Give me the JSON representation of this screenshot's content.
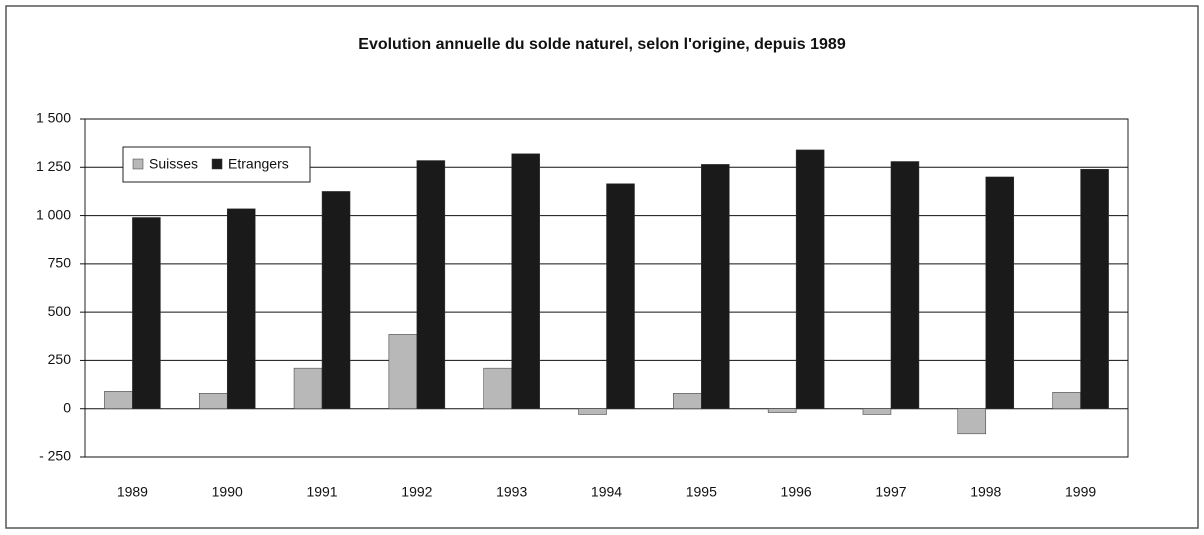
{
  "chart_data": {
    "type": "bar",
    "title": "Evolution annuelle du solde naturel, selon l'origine, depuis 1989",
    "categories": [
      "1989",
      "1990",
      "1991",
      "1992",
      "1993",
      "1994",
      "1995",
      "1996",
      "1997",
      "1998",
      "1999"
    ],
    "series": [
      {
        "name": "Suisses",
        "color": "#b8b8b8",
        "values": [
          90,
          80,
          210,
          385,
          210,
          -30,
          80,
          -20,
          -30,
          -130,
          85
        ]
      },
      {
        "name": "Etrangers",
        "color": "#1a1a1a",
        "values": [
          990,
          1035,
          1125,
          1285,
          1320,
          1165,
          1265,
          1340,
          1280,
          1200,
          1240
        ]
      }
    ],
    "ylim": [
      -250,
      1500
    ],
    "yticks": [
      {
        "value": -250,
        "label": "- 250"
      },
      0,
      250,
      500,
      750,
      {
        "value": 1000,
        "label": "1 000"
      },
      {
        "value": 1250,
        "label": "1 250"
      },
      {
        "value": 1500,
        "label": "1 500"
      }
    ],
    "grid": true,
    "legend": "top-left"
  }
}
